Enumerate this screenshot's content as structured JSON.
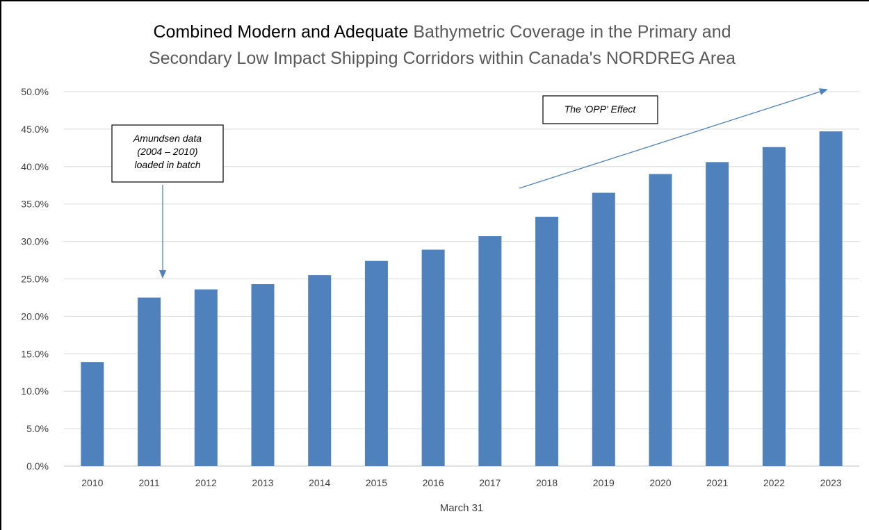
{
  "chart_data": {
    "type": "bar",
    "title_part1": "Combined Modern and Adequate",
    "title_part2": "Bathymetric Coverage in the Primary and",
    "title_line2": "Secondary Low Impact Shipping Corridors within Canada's NORDREG Area",
    "xlabel": "March 31",
    "ylabel": "",
    "categories": [
      "2010",
      "2011",
      "2012",
      "2013",
      "2014",
      "2015",
      "2016",
      "2017",
      "2018",
      "2019",
      "2020",
      "2021",
      "2022",
      "2023"
    ],
    "values": [
      13.9,
      22.5,
      23.6,
      24.3,
      25.5,
      27.4,
      28.9,
      30.7,
      33.3,
      36.5,
      39.0,
      40.6,
      42.6,
      44.7
    ],
    "ylim": [
      0,
      50
    ],
    "yticks": [
      "0.0%",
      "5.0%",
      "10.0%",
      "15.0%",
      "20.0%",
      "25.0%",
      "30.0%",
      "35.0%",
      "40.0%",
      "45.0%",
      "50.0%"
    ],
    "grid": true,
    "bar_color": "#4F81BD",
    "annotations": [
      {
        "id": "amundsen",
        "lines": [
          "Amundsen data",
          "(2004 – 2010)",
          "loaded in batch"
        ]
      },
      {
        "id": "opp",
        "lines": [
          "The 'OPP' Effect"
        ]
      }
    ]
  }
}
